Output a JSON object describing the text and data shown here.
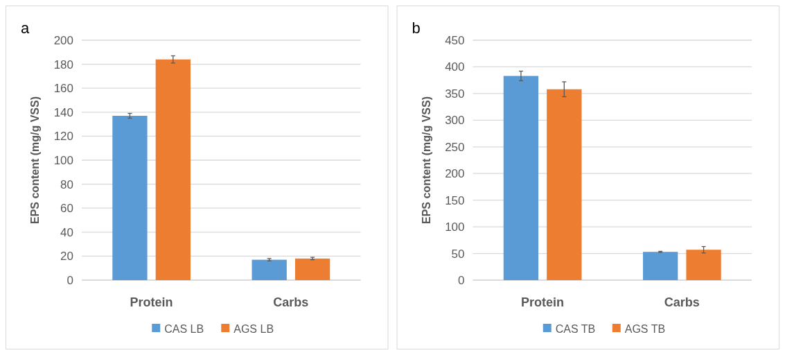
{
  "chart_data": [
    {
      "type": "bar",
      "annotations": [
        "a"
      ],
      "ylabel": "EPS content (mg/g VSS)",
      "categories": [
        "Protein",
        "Carbs"
      ],
      "series": [
        {
          "name": "CAS LB",
          "color": "#5b9bd5",
          "values": [
            137,
            17
          ],
          "errors": [
            2,
            1
          ]
        },
        {
          "name": "AGS LB",
          "color": "#ed7d31",
          "values": [
            184,
            18
          ],
          "errors": [
            3,
            1
          ]
        }
      ],
      "ylim": [
        0,
        200
      ],
      "yticks": [
        0,
        20,
        40,
        60,
        80,
        100,
        120,
        140,
        160,
        180,
        200
      ],
      "grid": "y",
      "legend": "bottom"
    },
    {
      "type": "bar",
      "annotations": [
        "b"
      ],
      "ylabel": "EPS content (mg/g VSS)",
      "categories": [
        "Protein",
        "Carbs"
      ],
      "series": [
        {
          "name": "CAS TB",
          "color": "#5b9bd5",
          "values": [
            383,
            53
          ],
          "errors": [
            9,
            1
          ]
        },
        {
          "name": "AGS TB",
          "color": "#ed7d31",
          "values": [
            358,
            57
          ],
          "errors": [
            14,
            6
          ]
        }
      ],
      "ylim": [
        0,
        450
      ],
      "yticks": [
        0,
        50,
        100,
        150,
        200,
        250,
        300,
        350,
        400,
        450
      ],
      "grid": "y",
      "legend": "bottom"
    }
  ]
}
